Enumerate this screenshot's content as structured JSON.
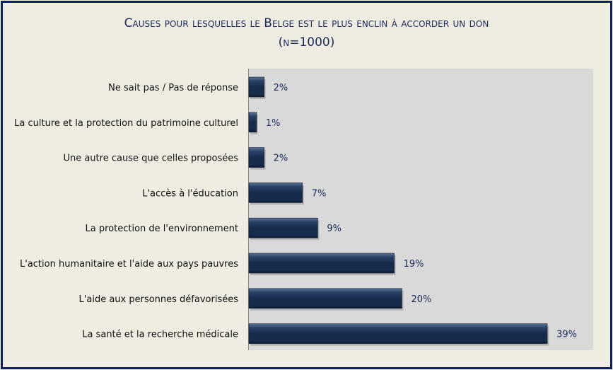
{
  "chart_data": {
    "type": "bar",
    "orientation": "horizontal",
    "title": "Causes pour lesquelles le Belge est le plus enclin à accorder un don",
    "subtitle": "(n=1000)",
    "categories": [
      "Ne sait pas / Pas de réponse",
      "La culture et la protection du patrimoine culturel",
      "Une autre cause que celles proposées",
      "L'accès à l'éducation",
      "La protection de l'environnement",
      "L'action humanitaire et l'aide aux pays pauvres",
      "L'aide aux personnes défavorisées",
      "La santé et la recherche médicale"
    ],
    "values": [
      2,
      1,
      2,
      7,
      9,
      19,
      20,
      39
    ],
    "value_labels": [
      "2%",
      "1%",
      "2%",
      "7%",
      "9%",
      "19%",
      "20%",
      "39%"
    ],
    "xlim": [
      0,
      45
    ],
    "xlabel": "",
    "ylabel": "",
    "grid": false,
    "colors": {
      "bar": "#1a2d4e",
      "plot_bg": "#d9d9d9",
      "page_bg": "#efece1",
      "label": "#1c2a5a"
    }
  }
}
